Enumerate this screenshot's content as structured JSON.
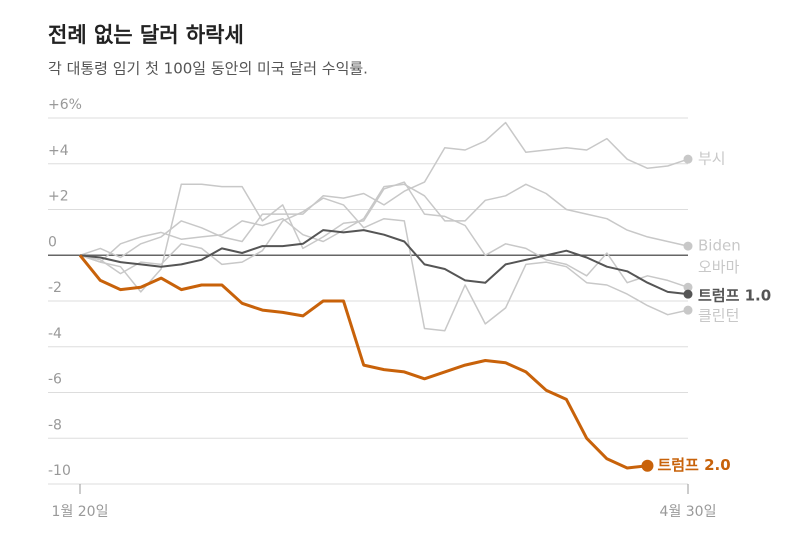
{
  "chart_data": {
    "type": "line",
    "title": "전례 없는 달러 하락세",
    "subtitle": "각 대통령 임기 첫 100일 동안의 미국 달러 수익률.",
    "categories": [
      "1월 20일",
      null,
      null,
      null,
      null,
      null,
      null,
      null,
      null,
      null,
      null,
      null,
      null,
      null,
      null,
      null,
      null,
      null,
      null,
      null,
      null,
      null,
      null,
      null,
      null,
      null,
      null,
      null,
      null,
      null,
      "4월 30일"
    ],
    "ylim": [
      -10,
      6
    ],
    "yticks": [
      {
        "value": 6,
        "label": "+6%"
      },
      {
        "value": 4,
        "label": "+4"
      },
      {
        "value": 2,
        "label": "+2"
      },
      0,
      -2,
      -4,
      -6,
      -8,
      -10
    ],
    "grid": true,
    "series": [
      {
        "name": "부시",
        "color": "#c8c8c8",
        "values": [
          0,
          0.3,
          -0.1,
          0.5,
          0.8,
          1.5,
          1.2,
          0.8,
          0.6,
          1.8,
          1.8,
          1.8,
          2.6,
          2.5,
          2.7,
          2.2,
          2.8,
          3.2,
          4.7,
          4.6,
          5.0,
          5.8,
          4.5,
          4.6,
          4.7,
          4.6,
          5.1,
          4.2,
          3.8,
          3.9,
          4.2
        ]
      },
      {
        "name": "Biden",
        "color": "#c8c8c8",
        "values": [
          0,
          -0.3,
          0.5,
          0.8,
          1.0,
          0.7,
          0.8,
          0.9,
          1.5,
          1.3,
          1.6,
          0.9,
          0.6,
          1.1,
          1.6,
          3.0,
          3.1,
          2.6,
          1.5,
          1.5,
          2.4,
          2.6,
          3.1,
          2.7,
          2.0,
          1.8,
          1.6,
          1.1,
          0.8,
          0.6,
          0.4
        ]
      },
      {
        "name": "오바마",
        "color": "#c8c8c8",
        "values": [
          0,
          -0.3,
          -0.5,
          -1.6,
          -0.6,
          3.1,
          3.1,
          3.0,
          3.0,
          1.5,
          2.2,
          0.3,
          0.8,
          1.4,
          1.5,
          2.9,
          3.2,
          1.8,
          1.7,
          1.3,
          0.0,
          0.5,
          0.3,
          -0.2,
          -0.4,
          -0.9,
          0.1,
          -1.2,
          -0.9,
          -1.1,
          -1.4
        ]
      },
      {
        "name": "클린턴",
        "color": "#c8c8c8",
        "values": [
          0,
          -0.2,
          -0.8,
          -0.3,
          -0.4,
          0.5,
          0.3,
          -0.4,
          -0.3,
          0.2,
          1.5,
          1.9,
          2.5,
          2.2,
          1.2,
          1.6,
          1.5,
          -3.2,
          -3.3,
          -1.3,
          -3.0,
          -2.3,
          -0.4,
          -0.3,
          -0.5,
          -1.2,
          -1.3,
          -1.7,
          -2.2,
          -2.6,
          -2.4
        ]
      },
      {
        "name": "트럼프 1.0",
        "color": "#555555",
        "values": [
          0,
          -0.1,
          -0.3,
          -0.4,
          -0.5,
          -0.4,
          -0.2,
          0.3,
          0.1,
          0.4,
          0.4,
          0.5,
          1.1,
          1.0,
          1.1,
          0.9,
          0.6,
          -0.4,
          -0.6,
          -1.1,
          -1.2,
          -0.4,
          -0.2,
          0.0,
          0.2,
          -0.1,
          -0.5,
          -0.7,
          -1.2,
          -1.6,
          -1.7
        ]
      },
      {
        "name": "트럼프 2.0",
        "color": "#c8620a",
        "values": [
          0,
          -1.1,
          -1.5,
          -1.4,
          -1.0,
          -1.5,
          -1.3,
          -1.3,
          -2.1,
          -2.4,
          -2.5,
          -2.65,
          -2.0,
          -2.0,
          -4.8,
          -5.0,
          -5.1,
          -5.4,
          -5.1,
          -4.8,
          -4.6,
          -4.7,
          -5.1,
          -5.9,
          -6.3,
          -8.0,
          -8.9,
          -9.3,
          -9.2,
          null,
          null
        ]
      }
    ]
  }
}
